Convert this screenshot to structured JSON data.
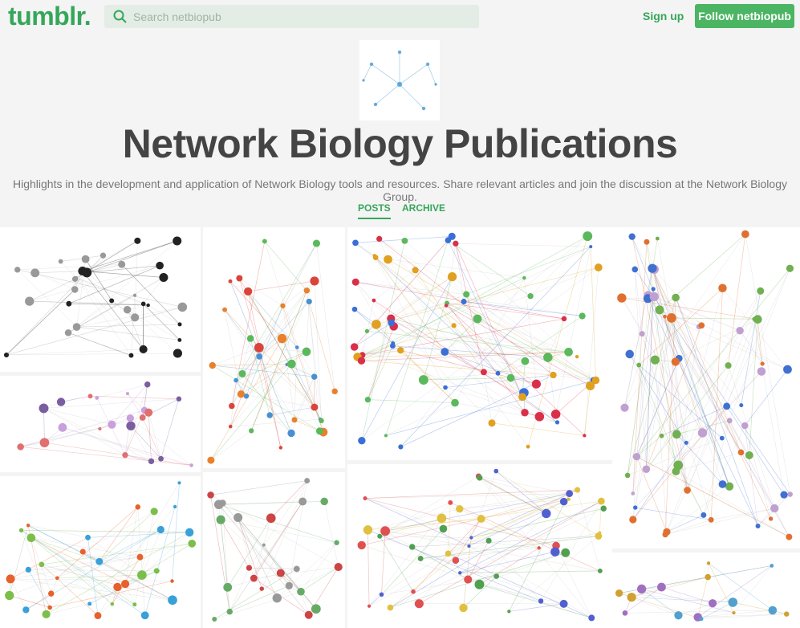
{
  "header": {
    "logo": "tumblr.",
    "search_placeholder": "Search netbiopub",
    "sign_up": "Sign up",
    "follow": "Follow netbiopub"
  },
  "blog": {
    "title": "Network Biology Publications",
    "description": "Highlights in the development and application of Network Biology tools and resources. Share relevant articles and join the discussion at the Network Biology Group.",
    "tabs": [
      "POSTS",
      "ARCHIVE"
    ]
  }
}
